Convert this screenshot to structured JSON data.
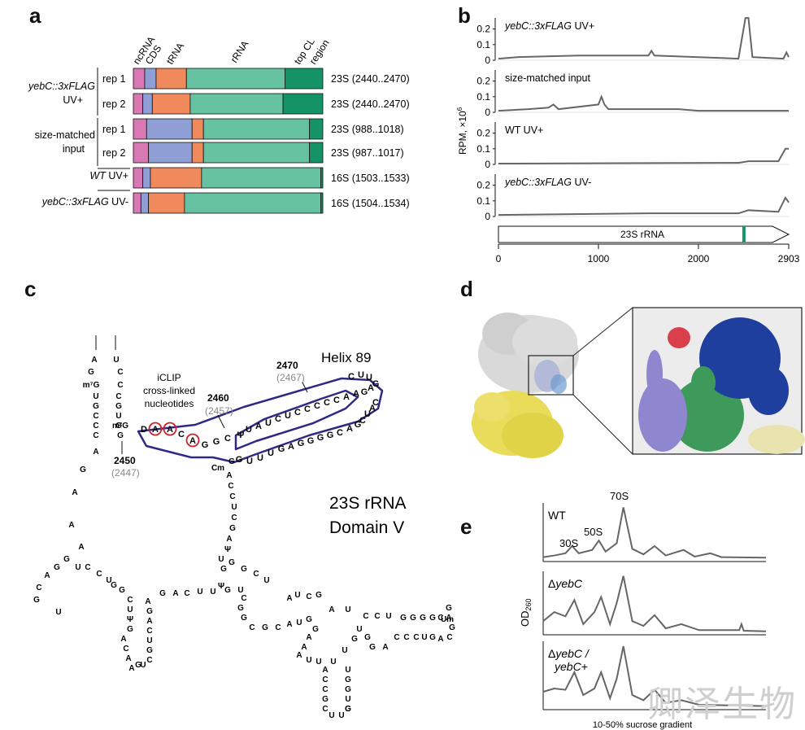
{
  "panel_a": {
    "letter": "a",
    "column_headers": [
      "ncRNA",
      "CDS",
      "tRNA",
      "rRNA",
      "top CL",
      "region"
    ],
    "colors": {
      "ncRNA": "#d879b4",
      "CDS": "#8f9ed4",
      "tRNA": "#f08a5d",
      "rRNA": "#66c2a0",
      "top CL region": "#149466"
    },
    "groups": [
      {
        "label_lines": [
          "yebC::3xFLAG",
          "UV+"
        ],
        "italic_first": true
      },
      {
        "label_lines": [
          "size-matched",
          "input"
        ],
        "italic_first": false
      }
    ],
    "rows": [
      {
        "sample": "yebC::3xFLAG UV+",
        "replicate": "rep 1",
        "region": "23S (2440..2470)",
        "fractions": [
          0.06,
          0.06,
          0.16,
          0.52,
          0.2
        ]
      },
      {
        "sample": "yebC::3xFLAG UV+",
        "replicate": "rep 2",
        "region": "23S (2440..2470)",
        "fractions": [
          0.05,
          0.05,
          0.2,
          0.49,
          0.21
        ]
      },
      {
        "sample": "size-matched input",
        "replicate": "rep 1",
        "region": "23S (988..1018)",
        "fractions": [
          0.07,
          0.24,
          0.06,
          0.56,
          0.07
        ]
      },
      {
        "sample": "size-matched input",
        "replicate": "rep 2",
        "region": "23S (987..1017)",
        "fractions": [
          0.08,
          0.23,
          0.06,
          0.56,
          0.07
        ]
      },
      {
        "sample_italic": "WT",
        "sample_rest": " UV+",
        "replicate": "",
        "region": "16S (1503..1533)",
        "fractions": [
          0.05,
          0.04,
          0.27,
          0.63,
          0.01
        ]
      },
      {
        "sample_italic": "yebC::3xFLAG",
        "sample_rest": " UV-",
        "replicate": "",
        "region": "16S (1504..1534)",
        "fractions": [
          0.04,
          0.04,
          0.19,
          0.72,
          0.01
        ]
      }
    ]
  },
  "panel_b": {
    "letter": "b",
    "ylabel": "RPM, ×10",
    "ylabel_exp": "6",
    "tracks": [
      {
        "label_italic": "yebC::3xFLAG",
        "label_rest": " UV+",
        "yticks": [
          "0.2",
          "0.1",
          "0"
        ]
      },
      {
        "label_italic": "",
        "label_rest": "size-matched input",
        "yticks": [
          "0.2",
          "0.1",
          "0"
        ]
      },
      {
        "label_italic": "",
        "label_rest": "WT UV+",
        "yticks": [
          "0.2",
          "0.1",
          "0"
        ]
      },
      {
        "label_italic": "yebC::3xFLAG",
        "label_rest": " UV-",
        "yticks": [
          "0.2",
          "0.1",
          "0"
        ]
      }
    ],
    "gene_label": "23S rRNA",
    "xticks": [
      "0",
      "1000",
      "2000",
      "2903"
    ],
    "highlight_color": "#149466"
  },
  "panel_c": {
    "letter": "c",
    "title_lines": [
      "23S rRNA",
      "Domain V"
    ],
    "helix_label": "Helix 89",
    "iclip_lines": [
      "iCLIP",
      "cross-linked",
      "nucleotides"
    ],
    "positions": [
      {
        "num": "2470",
        "alt": "(2467)"
      },
      {
        "num": "2460",
        "alt": "(2457)"
      },
      {
        "num": "2450",
        "alt": "(2447)"
      }
    ],
    "helix_top_strand": [
      "U",
      "A",
      "U",
      "C",
      "U",
      "C",
      "C",
      "C",
      "C",
      "C",
      "A",
      "A",
      "G",
      "A",
      "G",
      "U",
      "U",
      "C"
    ],
    "helix_bottom_strand": [
      "G",
      "U",
      "U",
      "U",
      "G",
      "A",
      "G",
      "G",
      "G",
      "G",
      "C",
      "A",
      "G",
      "C",
      "U",
      "A",
      "C"
    ],
    "crosslinked": [
      "A",
      "A",
      "A"
    ],
    "loose_nucleotides": "D A C A G G C Ψ Cm m²G m⁷G GGGGC Um"
  },
  "panel_d": {
    "letter": "d"
  },
  "panel_e": {
    "letter": "e",
    "traces": [
      {
        "label": "WT",
        "italic": false
      },
      {
        "label": "ΔyebC",
        "italic": true
      },
      {
        "label_lines": [
          "ΔyebC /",
          "yebC+"
        ],
        "italic": true
      }
    ],
    "peak_labels": [
      "30S",
      "50S",
      "70S"
    ],
    "ylabel": "OD",
    "ylabel_sub": "260",
    "xlabel": "10-50% sucrose gradient"
  },
  "watermark": "卿泽生物"
}
